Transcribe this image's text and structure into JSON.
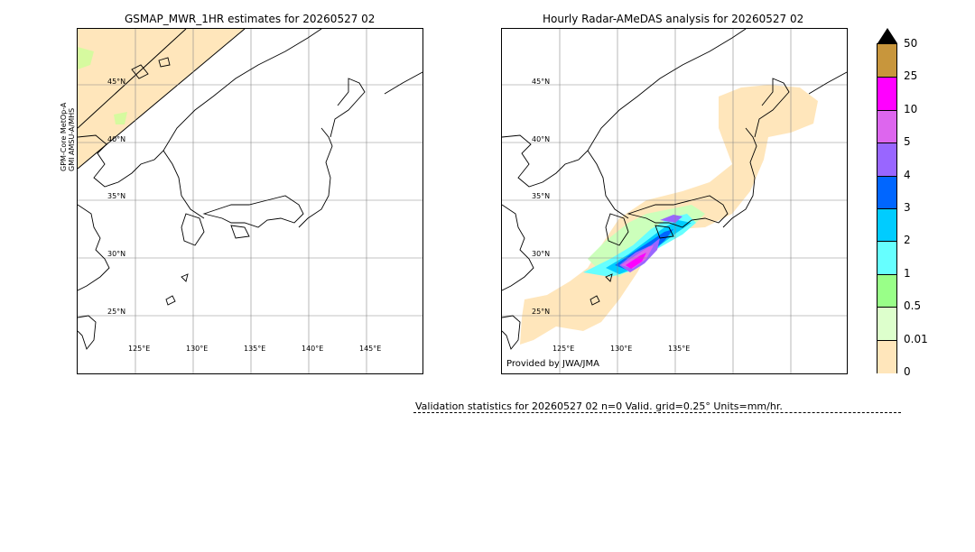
{
  "left_panel": {
    "title": "GSMAP_MWR_1HR estimates for 20260527 02",
    "sat_line1": "GPM-Core MetOp-A",
    "sat_line2": "GMI   AMSU-A/MHS",
    "lat_labels": [
      "45°N",
      "40°N",
      "35°N",
      "30°N",
      "25°N"
    ],
    "lon_labels": [
      "125°E",
      "130°E",
      "135°E",
      "140°E",
      "145°E"
    ]
  },
  "right_panel": {
    "title": "Hourly Radar-AMeDAS analysis for 20260527 02",
    "lat_labels": [
      "45°N",
      "40°N",
      "35°N",
      "30°N",
      "25°N"
    ],
    "lon_labels": [
      "125°E",
      "130°E",
      "135°E"
    ],
    "provided_by": "Provided by JWA/JMA"
  },
  "colorbar": {
    "levels": [
      "50",
      "25",
      "10",
      "5",
      "4",
      "3",
      "2",
      "1",
      "0.5",
      "0.01",
      "0"
    ],
    "colors": [
      "#c8963c",
      "#ff00ff",
      "#dd66ee",
      "#9966ff",
      "#0066ff",
      "#00ccff",
      "#66ffff",
      "#99ff88",
      "#ddffcc",
      "#ffe6bb"
    ],
    "extend_color": "#000000"
  },
  "validation": {
    "text": "Validation statistics for 20260527 02  n=0 Valid. grid=0.25° Units=mm/hr."
  }
}
